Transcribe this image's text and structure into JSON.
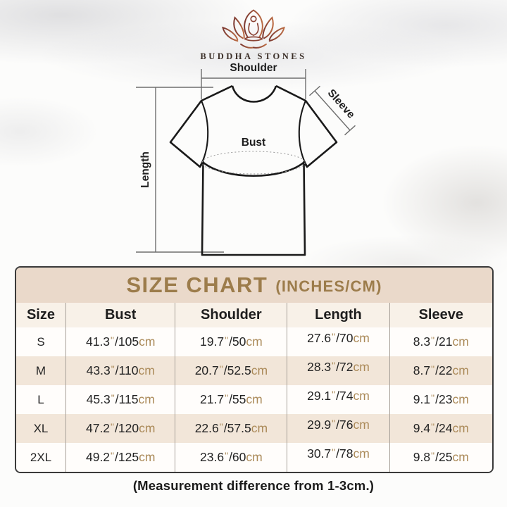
{
  "brand": {
    "name": "BUDDHA STONES"
  },
  "diagram": {
    "shoulder_label": "Shoulder",
    "sleeve_label": "Sleeve",
    "bust_label": "Bust",
    "length_label": "Length"
  },
  "size_chart": {
    "title": "SIZE CHART",
    "title_suffix": "(INCHES/CM)",
    "columns": [
      "Size",
      "Bust",
      "Shoulder",
      "Length",
      "Sleeve"
    ],
    "units": {
      "inch": "\"",
      "cm": "cm"
    },
    "rows": [
      {
        "size": "S",
        "bust": {
          "in": "41.3",
          "cm": "105"
        },
        "shoulder": {
          "in": "19.7",
          "cm": "50"
        },
        "length": {
          "in": "27.6",
          "cm": "70"
        },
        "sleeve": {
          "in": "8.3",
          "cm": "21"
        }
      },
      {
        "size": "M",
        "bust": {
          "in": "43.3",
          "cm": "110"
        },
        "shoulder": {
          "in": "20.7",
          "cm": "52.5"
        },
        "length": {
          "in": "28.3",
          "cm": "72"
        },
        "sleeve": {
          "in": "8.7",
          "cm": "22"
        }
      },
      {
        "size": "L",
        "bust": {
          "in": "45.3",
          "cm": "115"
        },
        "shoulder": {
          "in": "21.7",
          "cm": "55"
        },
        "length": {
          "in": "29.1",
          "cm": "74"
        },
        "sleeve": {
          "in": "9.1",
          "cm": "23"
        }
      },
      {
        "size": "XL",
        "bust": {
          "in": "47.2",
          "cm": "120"
        },
        "shoulder": {
          "in": "22.6",
          "cm": "57.5"
        },
        "length": {
          "in": "29.9",
          "cm": "76"
        },
        "sleeve": {
          "in": "9.4",
          "cm": "24"
        }
      },
      {
        "size": "2XL",
        "bust": {
          "in": "49.2",
          "cm": "125"
        },
        "shoulder": {
          "in": "23.6",
          "cm": "60"
        },
        "length": {
          "in": "30.7",
          "cm": "78"
        },
        "sleeve": {
          "in": "9.8",
          "cm": "25"
        }
      }
    ]
  },
  "footnote": "(Measurement difference from 1-3cm.)",
  "colors": {
    "title_gold": "#9c7c4b",
    "title_band": "#ead9ca",
    "header_cream": "#f8f1e8",
    "row_beige": "#f2e6d9",
    "row_white": "#fffdfb",
    "unit_tan": "#ab8a59",
    "table_border": "#3a3a3a",
    "logo_dark": "#7c3931",
    "logo_light": "#bb6b43"
  }
}
